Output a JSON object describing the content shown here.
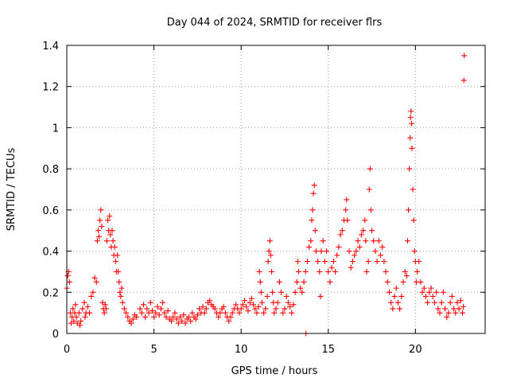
{
  "chart_data": {
    "type": "scatter",
    "title": "Day 044 of 2024, SRMTID for receiver flrs",
    "xlabel": "GPS time / hours",
    "ylabel": "SRMTID / TECUs",
    "xlim": [
      0,
      24
    ],
    "ylim": [
      0,
      1.4
    ],
    "x_ticks": [
      0,
      5,
      10,
      15,
      20
    ],
    "x_tick_labels": [
      "0",
      "5",
      "10",
      "15",
      "20"
    ],
    "y_ticks": [
      0,
      0.2,
      0.4,
      0.6,
      0.8,
      1.0,
      1.2,
      1.4
    ],
    "y_tick_labels": [
      "0",
      "0.2",
      "0.4",
      "0.6",
      "0.8",
      "1",
      "1.2",
      "1.4"
    ],
    "grid": true,
    "marker": "+",
    "color": "#ff0000",
    "series": [
      {
        "name": "SRMTID flrs",
        "points": [
          [
            0.0,
            0.22
          ],
          [
            0.05,
            0.28
          ],
          [
            0.1,
            0.3
          ],
          [
            0.15,
            0.25
          ],
          [
            0.2,
            0.1
          ],
          [
            0.25,
            0.05
          ],
          [
            0.3,
            0.08
          ],
          [
            0.35,
            0.12
          ],
          [
            0.4,
            0.06
          ],
          [
            0.45,
            0.1
          ],
          [
            0.5,
            0.14
          ],
          [
            0.55,
            0.08
          ],
          [
            0.6,
            0.05
          ],
          [
            0.7,
            0.1
          ],
          [
            0.75,
            0.04
          ],
          [
            0.8,
            0.06
          ],
          [
            0.9,
            0.12
          ],
          [
            1.0,
            0.15
          ],
          [
            1.05,
            0.08
          ],
          [
            1.1,
            0.1
          ],
          [
            1.2,
            0.13
          ],
          [
            1.3,
            0.1
          ],
          [
            1.4,
            0.18
          ],
          [
            1.5,
            0.2
          ],
          [
            1.6,
            0.27
          ],
          [
            1.7,
            0.25
          ],
          [
            1.75,
            0.45
          ],
          [
            1.8,
            0.5
          ],
          [
            1.85,
            0.47
          ],
          [
            1.9,
            0.55
          ],
          [
            1.95,
            0.6
          ],
          [
            2.0,
            0.52
          ],
          [
            2.05,
            0.15
          ],
          [
            2.1,
            0.12
          ],
          [
            2.15,
            0.1
          ],
          [
            2.2,
            0.14
          ],
          [
            2.25,
            0.12
          ],
          [
            2.3,
            0.45
          ],
          [
            2.35,
            0.55
          ],
          [
            2.4,
            0.5
          ],
          [
            2.45,
            0.57
          ],
          [
            2.5,
            0.48
          ],
          [
            2.55,
            0.42
          ],
          [
            2.6,
            0.5
          ],
          [
            2.65,
            0.45
          ],
          [
            2.7,
            0.38
          ],
          [
            2.75,
            0.42
          ],
          [
            2.8,
            0.35
          ],
          [
            2.85,
            0.3
          ],
          [
            2.9,
            0.38
          ],
          [
            2.95,
            0.3
          ],
          [
            3.0,
            0.25
          ],
          [
            3.05,
            0.2
          ],
          [
            3.1,
            0.18
          ],
          [
            3.15,
            0.22
          ],
          [
            3.2,
            0.15
          ],
          [
            3.3,
            0.12
          ],
          [
            3.4,
            0.1
          ],
          [
            3.5,
            0.08
          ],
          [
            3.6,
            0.06
          ],
          [
            3.7,
            0.05
          ],
          [
            3.8,
            0.07
          ],
          [
            3.9,
            0.09
          ],
          [
            4.0,
            0.08
          ],
          [
            4.2,
            0.12
          ],
          [
            4.3,
            0.1
          ],
          [
            4.4,
            0.14
          ],
          [
            4.5,
            0.08
          ],
          [
            4.6,
            0.12
          ],
          [
            4.7,
            0.1
          ],
          [
            4.8,
            0.15
          ],
          [
            4.9,
            0.11
          ],
          [
            5.0,
            0.08
          ],
          [
            5.1,
            0.1
          ],
          [
            5.2,
            0.13
          ],
          [
            5.3,
            0.09
          ],
          [
            5.4,
            0.12
          ],
          [
            5.5,
            0.15
          ],
          [
            5.6,
            0.1
          ],
          [
            5.7,
            0.08
          ],
          [
            5.8,
            0.11
          ],
          [
            5.9,
            0.07
          ],
          [
            6.0,
            0.06
          ],
          [
            6.1,
            0.08
          ],
          [
            6.2,
            0.1
          ],
          [
            6.3,
            0.07
          ],
          [
            6.4,
            0.05
          ],
          [
            6.5,
            0.08
          ],
          [
            6.6,
            0.06
          ],
          [
            6.7,
            0.09
          ],
          [
            6.8,
            0.05
          ],
          [
            6.9,
            0.07
          ],
          [
            7.0,
            0.08
          ],
          [
            7.1,
            0.06
          ],
          [
            7.2,
            0.1
          ],
          [
            7.3,
            0.08
          ],
          [
            7.4,
            0.07
          ],
          [
            7.5,
            0.09
          ],
          [
            7.6,
            0.12
          ],
          [
            7.7,
            0.1
          ],
          [
            7.8,
            0.13
          ],
          [
            7.9,
            0.1
          ],
          [
            8.0,
            0.12
          ],
          [
            8.1,
            0.15
          ],
          [
            8.2,
            0.16
          ],
          [
            8.3,
            0.14
          ],
          [
            8.4,
            0.13
          ],
          [
            8.5,
            0.12
          ],
          [
            8.6,
            0.1
          ],
          [
            8.7,
            0.08
          ],
          [
            8.8,
            0.1
          ],
          [
            8.9,
            0.12
          ],
          [
            9.0,
            0.13
          ],
          [
            9.1,
            0.1
          ],
          [
            9.2,
            0.08
          ],
          [
            9.3,
            0.06
          ],
          [
            9.4,
            0.08
          ],
          [
            9.5,
            0.1
          ],
          [
            9.6,
            0.12
          ],
          [
            9.7,
            0.14
          ],
          [
            9.8,
            0.12
          ],
          [
            9.9,
            0.1
          ],
          [
            10.0,
            0.12
          ],
          [
            10.1,
            0.14
          ],
          [
            10.2,
            0.16
          ],
          [
            10.3,
            0.13
          ],
          [
            10.4,
            0.11
          ],
          [
            10.5,
            0.15
          ],
          [
            10.6,
            0.17
          ],
          [
            10.7,
            0.14
          ],
          [
            10.8,
            0.12
          ],
          [
            10.9,
            0.1
          ],
          [
            11.0,
            0.13
          ],
          [
            11.05,
            0.3
          ],
          [
            11.1,
            0.25
          ],
          [
            11.15,
            0.2
          ],
          [
            11.2,
            0.15
          ],
          [
            11.3,
            0.1
          ],
          [
            11.4,
            0.12
          ],
          [
            11.5,
            0.18
          ],
          [
            11.55,
            0.35
          ],
          [
            11.6,
            0.4
          ],
          [
            11.65,
            0.45
          ],
          [
            11.7,
            0.38
          ],
          [
            11.75,
            0.3
          ],
          [
            11.8,
            0.2
          ],
          [
            11.85,
            0.15
          ],
          [
            11.9,
            0.1
          ],
          [
            12.0,
            0.12
          ],
          [
            12.1,
            0.15
          ],
          [
            12.2,
            0.25
          ],
          [
            12.3,
            0.2
          ],
          [
            12.4,
            0.1
          ],
          [
            12.5,
            0.12
          ],
          [
            12.6,
            0.18
          ],
          [
            12.7,
            0.15
          ],
          [
            12.8,
            0.13
          ],
          [
            12.9,
            0.1
          ],
          [
            13.0,
            0.14
          ],
          [
            13.1,
            0.2
          ],
          [
            13.2,
            0.25
          ],
          [
            13.25,
            0.35
          ],
          [
            13.3,
            0.3
          ],
          [
            13.4,
            0.22
          ],
          [
            13.5,
            0.2
          ],
          [
            13.6,
            0.25
          ],
          [
            13.7,
            0.3
          ],
          [
            13.72,
            0.0
          ],
          [
            13.8,
            0.35
          ],
          [
            13.9,
            0.42
          ],
          [
            14.0,
            0.45
          ],
          [
            14.05,
            0.55
          ],
          [
            14.1,
            0.6
          ],
          [
            14.15,
            0.68
          ],
          [
            14.2,
            0.72
          ],
          [
            14.25,
            0.5
          ],
          [
            14.3,
            0.4
          ],
          [
            14.4,
            0.35
          ],
          [
            14.5,
            0.3
          ],
          [
            14.55,
            0.18
          ],
          [
            14.6,
            0.4
          ],
          [
            14.7,
            0.45
          ],
          [
            14.8,
            0.35
          ],
          [
            14.9,
            0.4
          ],
          [
            15.0,
            0.3
          ],
          [
            15.1,
            0.25
          ],
          [
            15.2,
            0.32
          ],
          [
            15.3,
            0.35
          ],
          [
            15.4,
            0.3
          ],
          [
            15.5,
            0.38
          ],
          [
            15.6,
            0.42
          ],
          [
            15.7,
            0.48
          ],
          [
            15.8,
            0.5
          ],
          [
            15.9,
            0.55
          ],
          [
            16.0,
            0.6
          ],
          [
            16.05,
            0.65
          ],
          [
            16.1,
            0.55
          ],
          [
            16.2,
            0.4
          ],
          [
            16.3,
            0.32
          ],
          [
            16.4,
            0.35
          ],
          [
            16.5,
            0.38
          ],
          [
            16.6,
            0.4
          ],
          [
            16.7,
            0.45
          ],
          [
            16.8,
            0.42
          ],
          [
            16.9,
            0.48
          ],
          [
            17.0,
            0.5
          ],
          [
            17.1,
            0.55
          ],
          [
            17.15,
            0.45
          ],
          [
            17.2,
            0.3
          ],
          [
            17.3,
            0.35
          ],
          [
            17.35,
            0.7
          ],
          [
            17.4,
            0.8
          ],
          [
            17.45,
            0.6
          ],
          [
            17.5,
            0.5
          ],
          [
            17.6,
            0.45
          ],
          [
            17.7,
            0.4
          ],
          [
            17.8,
            0.35
          ],
          [
            17.9,
            0.45
          ],
          [
            18.0,
            0.38
          ],
          [
            18.1,
            0.42
          ],
          [
            18.2,
            0.35
          ],
          [
            18.3,
            0.3
          ],
          [
            18.4,
            0.25
          ],
          [
            18.5,
            0.2
          ],
          [
            18.6,
            0.15
          ],
          [
            18.7,
            0.12
          ],
          [
            18.8,
            0.18
          ],
          [
            18.9,
            0.22
          ],
          [
            19.0,
            0.15
          ],
          [
            19.1,
            0.12
          ],
          [
            19.2,
            0.18
          ],
          [
            19.3,
            0.25
          ],
          [
            19.4,
            0.3
          ],
          [
            19.5,
            0.28
          ],
          [
            19.55,
            0.45
          ],
          [
            19.6,
            0.6
          ],
          [
            19.65,
            0.8
          ],
          [
            19.7,
            0.95
          ],
          [
            19.72,
            1.05
          ],
          [
            19.75,
            1.08
          ],
          [
            19.78,
            1.02
          ],
          [
            19.8,
            0.9
          ],
          [
            19.85,
            0.7
          ],
          [
            19.9,
            0.55
          ],
          [
            19.95,
            0.4
          ],
          [
            20.0,
            0.35
          ],
          [
            20.05,
            0.25
          ],
          [
            20.1,
            0.3
          ],
          [
            20.2,
            0.35
          ],
          [
            20.3,
            0.25
          ],
          [
            20.4,
            0.2
          ],
          [
            20.5,
            0.22
          ],
          [
            20.6,
            0.18
          ],
          [
            20.7,
            0.15
          ],
          [
            20.8,
            0.2
          ],
          [
            20.9,
            0.22
          ],
          [
            21.0,
            0.18
          ],
          [
            21.1,
            0.15
          ],
          [
            21.2,
            0.2
          ],
          [
            21.3,
            0.12
          ],
          [
            21.4,
            0.1
          ],
          [
            21.5,
            0.15
          ],
          [
            21.6,
            0.2
          ],
          [
            21.7,
            0.12
          ],
          [
            21.8,
            0.08
          ],
          [
            21.9,
            0.1
          ],
          [
            22.0,
            0.15
          ],
          [
            22.1,
            0.18
          ],
          [
            22.2,
            0.12
          ],
          [
            22.3,
            0.1
          ],
          [
            22.4,
            0.15
          ],
          [
            22.5,
            0.12
          ],
          [
            22.6,
            0.16
          ],
          [
            22.7,
            0.1
          ],
          [
            22.75,
            0.13
          ],
          [
            22.78,
            1.23
          ],
          [
            22.8,
            1.35
          ]
        ]
      }
    ]
  }
}
